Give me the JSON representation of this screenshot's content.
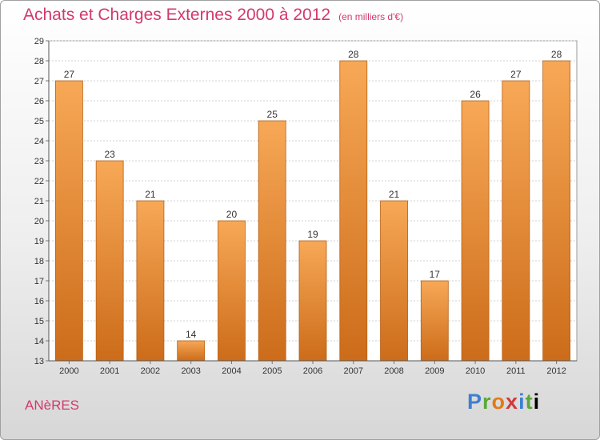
{
  "header": {
    "title": "Achats et Charges Externes 2000 à 2012",
    "subtitle": "(en milliers d'€)"
  },
  "footer": {
    "commune": "ANèRES",
    "logo_letters": [
      "P",
      "r",
      "o",
      "x",
      "i",
      "t",
      "i"
    ]
  },
  "colors": {
    "title": "#d2396e",
    "bar_top": "#f7a856",
    "bar_bottom": "#cc6c1a"
  },
  "chart_data": {
    "type": "bar",
    "title": "Achats et Charges Externes 2000 à 2012",
    "subtitle": "(en milliers d'€)",
    "categories": [
      "2000",
      "2001",
      "2002",
      "2003",
      "2004",
      "2005",
      "2006",
      "2007",
      "2008",
      "2009",
      "2010",
      "2011",
      "2012"
    ],
    "values": [
      27,
      23,
      21,
      14,
      20,
      25,
      19,
      28,
      21,
      17,
      26,
      27,
      28
    ],
    "data_labels": [
      "27",
      "23",
      "21",
      "14",
      "20",
      "25",
      "19",
      "28",
      "21",
      "17",
      "26",
      "27",
      "28"
    ],
    "y_ticks": [
      "13",
      "14",
      "15",
      "16",
      "17",
      "18",
      "19",
      "20",
      "21",
      "22",
      "23",
      "24",
      "25",
      "26",
      "27",
      "28",
      "29"
    ],
    "ylim": [
      13,
      29
    ],
    "grid": true,
    "xlabel": "",
    "ylabel": ""
  }
}
